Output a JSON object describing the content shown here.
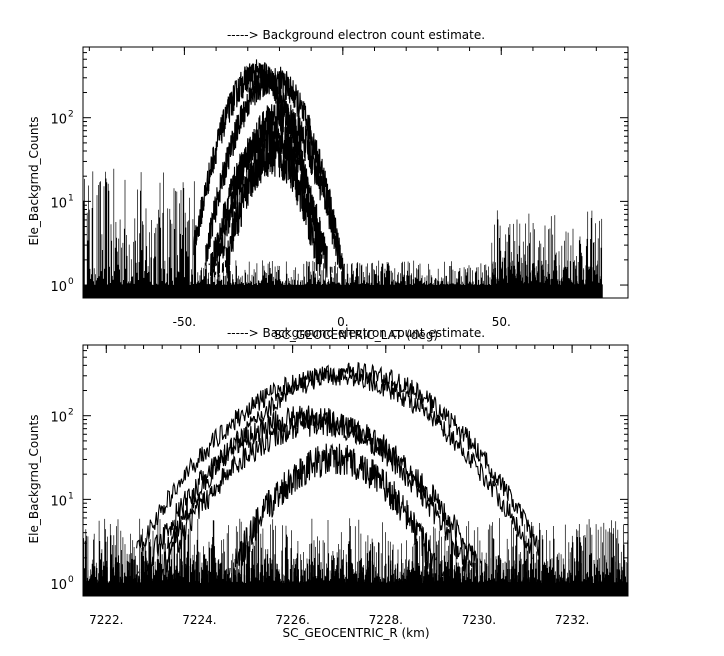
{
  "chart_data": [
    {
      "type": "line",
      "title": "-----> Background electron count estimate.",
      "xlabel": "SC_GEOCENTRIC_LAT (deg)",
      "ylabel": "Ele_Backgrnd_Counts",
      "yscale": "log",
      "xlim": [
        -82,
        90
      ],
      "ylim": [
        0.7,
        700
      ],
      "x_ticks": [
        -50,
        0,
        50
      ],
      "x_tick_labels": [
        "-50.",
        "0.",
        "50."
      ],
      "y_ticks": [
        1,
        10,
        100
      ],
      "y_tick_labels": [
        {
          "base": "10",
          "exp": "0"
        },
        {
          "base": "10",
          "exp": "1"
        },
        {
          "base": "10",
          "exp": "2"
        }
      ],
      "grid": false,
      "noise_bands": [
        {
          "x": [
            -82,
            -45
          ],
          "ymin": 1,
          "ymax": 25
        },
        {
          "x": [
            47,
            82
          ],
          "ymin": 1,
          "ymax": 8
        },
        {
          "x": [
            -45,
            82
          ],
          "ymin": 1,
          "ymax": 2
        }
      ],
      "series": [
        {
          "peak_x": -27,
          "peak_y": 330,
          "half_width": 16,
          "thickness": 0.18
        },
        {
          "peak_x": -22,
          "peak_y": 290,
          "half_width": 17,
          "thickness": 0.18
        },
        {
          "peak_x": -20,
          "peak_y": 100,
          "half_width": 17,
          "thickness": 0.22
        },
        {
          "peak_x": -23,
          "peak_y": 60,
          "half_width": 17,
          "thickness": 0.22
        },
        {
          "peak_x": -22,
          "peak_y": 35,
          "half_width": 15,
          "thickness": 0.25
        }
      ]
    },
    {
      "type": "line",
      "title": "-----> Background electron count estimate.",
      "xlabel": "SC_GEOCENTRIC_R (km)",
      "ylabel": "Ele_Backgrnd_Counts",
      "yscale": "log",
      "xlim": [
        7221.5,
        7233.2
      ],
      "ylim": [
        0.7,
        700
      ],
      "x_ticks": [
        7222,
        7224,
        7226,
        7228,
        7230,
        7232
      ],
      "x_tick_labels": [
        "7222.",
        "7224.",
        "7226.",
        "7228.",
        "7230.",
        "7232."
      ],
      "y_ticks": [
        1,
        10,
        100
      ],
      "y_tick_labels": [
        {
          "base": "10",
          "exp": "0"
        },
        {
          "base": "10",
          "exp": "1"
        },
        {
          "base": "10",
          "exp": "2"
        }
      ],
      "grid": false,
      "noise_bands": [
        {
          "x": [
            7221.5,
            7233.2
          ],
          "ymin": 1,
          "ymax": 6
        },
        {
          "x": [
            7221.5,
            7233.2
          ],
          "ymin": 1,
          "ymax": 2
        }
      ],
      "series": [
        {
          "peak_x": 7227.3,
          "peak_y": 330,
          "half_width": 3.2,
          "thickness": 0.12
        },
        {
          "peak_x": 7226.9,
          "peak_y": 300,
          "half_width": 3.4,
          "thickness": 0.12
        },
        {
          "peak_x": 7226.3,
          "peak_y": 95,
          "half_width": 3.0,
          "thickness": 0.15
        },
        {
          "peak_x": 7226.6,
          "peak_y": 80,
          "half_width": 3.0,
          "thickness": 0.15
        },
        {
          "peak_x": 7226.9,
          "peak_y": 30,
          "half_width": 2.2,
          "thickness": 0.2
        }
      ]
    }
  ]
}
